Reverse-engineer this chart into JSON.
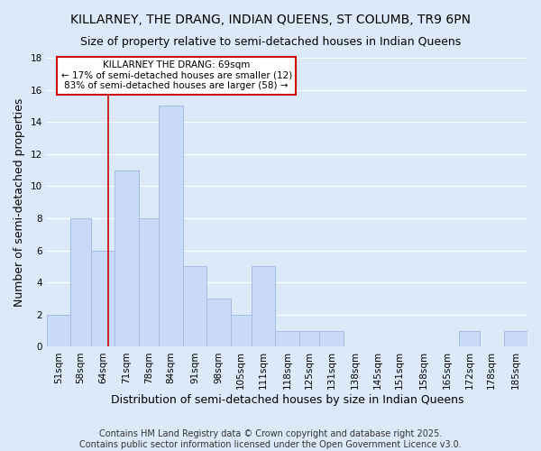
{
  "title": "KILLARNEY, THE DRANG, INDIAN QUEENS, ST COLUMB, TR9 6PN",
  "subtitle": "Size of property relative to semi-detached houses in Indian Queens",
  "xlabel": "Distribution of semi-detached houses by size in Indian Queens",
  "ylabel": "Number of semi-detached properties",
  "bin_labels": [
    "51sqm",
    "58sqm",
    "64sqm",
    "71sqm",
    "78sqm",
    "84sqm",
    "91sqm",
    "98sqm",
    "105sqm",
    "111sqm",
    "118sqm",
    "125sqm",
    "131sqm",
    "138sqm",
    "145sqm",
    "151sqm",
    "158sqm",
    "165sqm",
    "172sqm",
    "178sqm",
    "185sqm"
  ],
  "bin_edges": [
    51,
    58,
    64,
    71,
    78,
    84,
    91,
    98,
    105,
    111,
    118,
    125,
    131,
    138,
    145,
    151,
    158,
    165,
    172,
    178,
    185,
    192
  ],
  "counts": [
    2,
    8,
    6,
    11,
    8,
    15,
    5,
    3,
    2,
    5,
    1,
    1,
    1,
    0,
    0,
    0,
    0,
    0,
    1,
    0,
    1
  ],
  "bar_color": "#c9daf8",
  "bar_edge_color": "#a4bce0",
  "grid_color": "#ffffff",
  "background_color": "#dce9f8",
  "vline_x": 69,
  "vline_color": "#cc0000",
  "annotation_title": "KILLARNEY THE DRANG: 69sqm",
  "annotation_line1": "← 17% of semi-detached houses are smaller (12)",
  "annotation_line2": "83% of semi-detached houses are larger (58) →",
  "annotation_box_color": "#ffffff",
  "annotation_box_edge": "#cc0000",
  "ylim": [
    0,
    18
  ],
  "yticks": [
    0,
    2,
    4,
    6,
    8,
    10,
    12,
    14,
    16,
    18
  ],
  "footer1": "Contains HM Land Registry data © Crown copyright and database right 2025.",
  "footer2": "Contains public sector information licensed under the Open Government Licence v3.0.",
  "title_fontsize": 10,
  "subtitle_fontsize": 9,
  "axis_label_fontsize": 9,
  "tick_fontsize": 7.5,
  "footer_fontsize": 7
}
